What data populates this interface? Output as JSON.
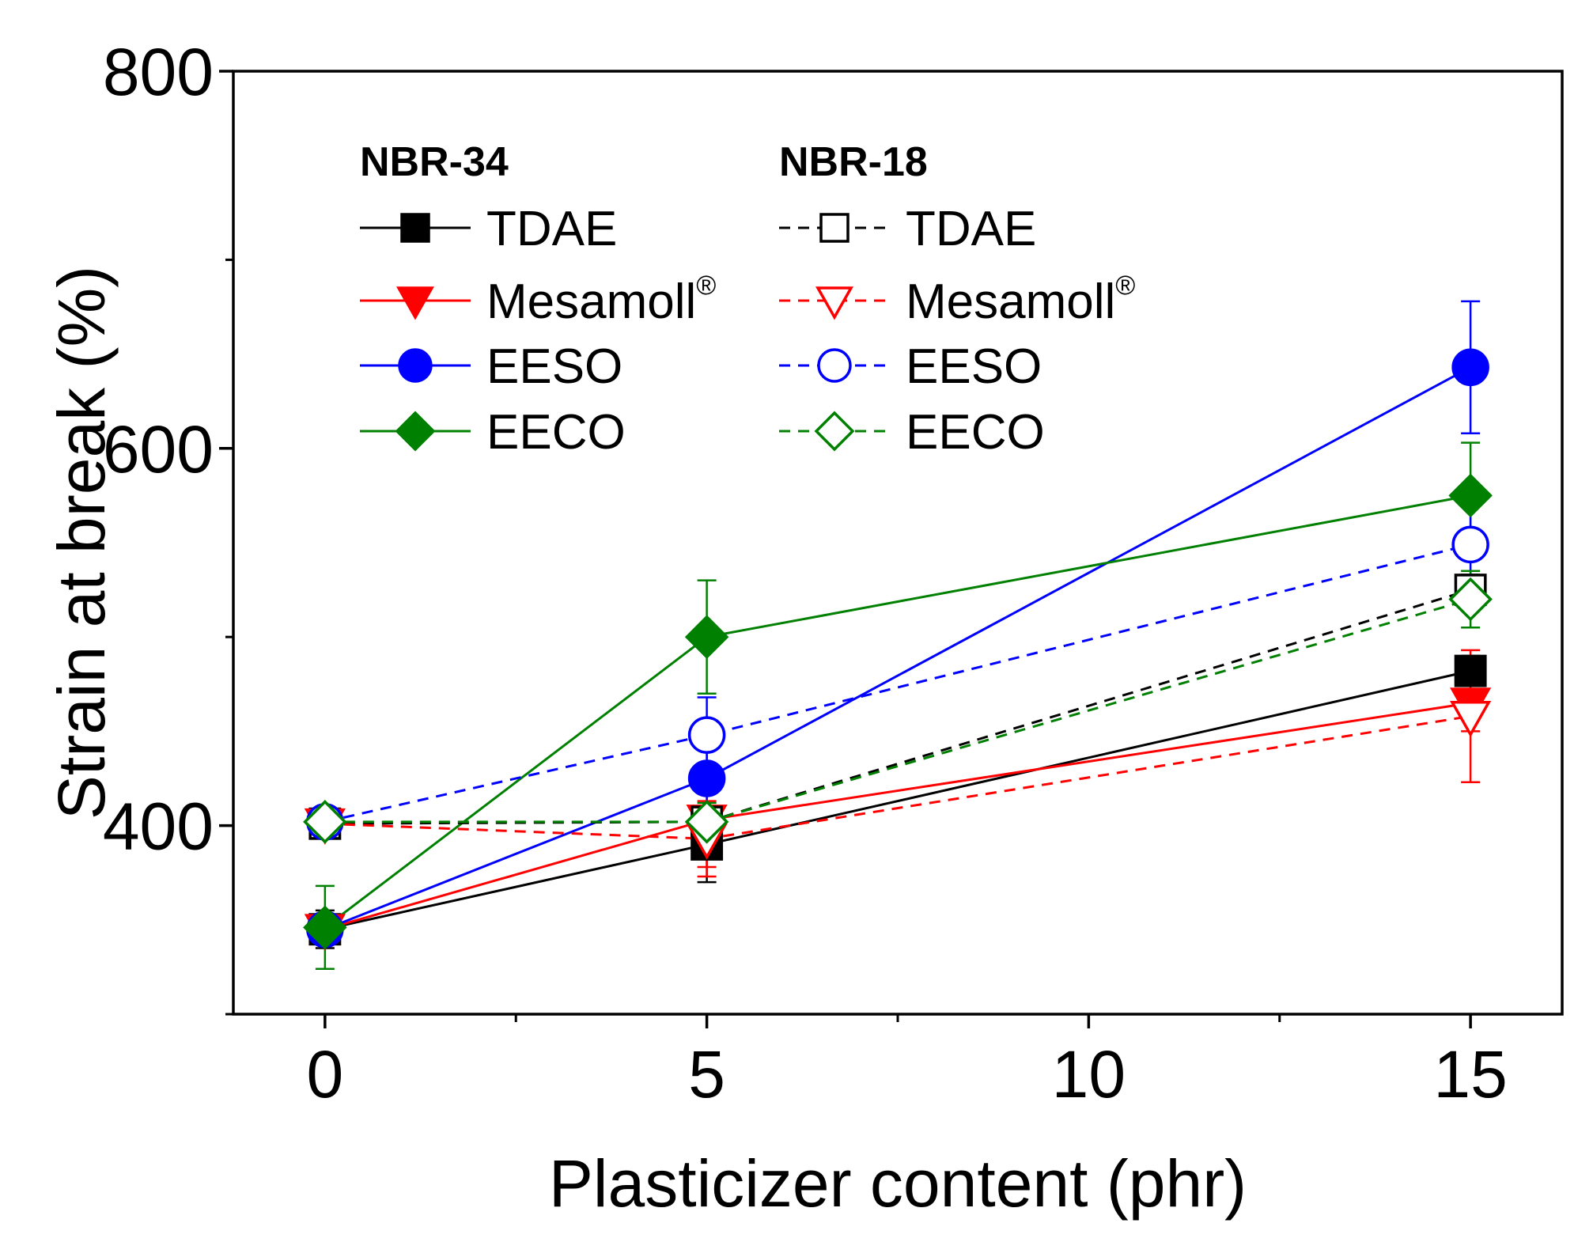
{
  "chart_data": {
    "type": "line",
    "xlabel": "Plasticizer content (phr)",
    "ylabel": "Strain at break (%)",
    "xlim": [
      -1.2,
      16.2
    ],
    "ylim": [
      300,
      800
    ],
    "xticks": [
      "0",
      "5",
      "10",
      "15"
    ],
    "yticks": [
      "400",
      "600",
      "800"
    ],
    "legend_groups": [
      "NBR-34",
      "NBR-18"
    ],
    "registered_mark": "®",
    "x": [
      0,
      5,
      15
    ],
    "series": [
      {
        "name": "TDAE",
        "group": "NBR-34",
        "color": "#000000",
        "marker": "square",
        "filled": true,
        "dashed": false,
        "values": [
          345,
          390,
          482
        ],
        "errors": [
          10,
          20,
          8
        ]
      },
      {
        "name": "Mesamoll",
        "group": "NBR-34",
        "color": "#ff0000",
        "marker": "triangle-down",
        "filled": true,
        "dashed": false,
        "values": [
          345,
          403,
          465
        ],
        "errors": [
          8,
          25,
          15
        ]
      },
      {
        "name": "EESO",
        "group": "NBR-34",
        "color": "#0000ff",
        "marker": "circle",
        "filled": true,
        "dashed": false,
        "values": [
          345,
          425,
          643
        ],
        "errors": [
          8,
          20,
          35
        ]
      },
      {
        "name": "EECO",
        "group": "NBR-34",
        "color": "#008000",
        "marker": "diamond",
        "filled": true,
        "dashed": false,
        "values": [
          346,
          500,
          575
        ],
        "errors": [
          22,
          30,
          28
        ]
      },
      {
        "name": "TDAE",
        "group": "NBR-18",
        "color": "#000000",
        "marker": "square",
        "filled": false,
        "dashed": true,
        "values": [
          401,
          402,
          525
        ],
        "errors": [
          3,
          5,
          8
        ]
      },
      {
        "name": "Mesamoll",
        "group": "NBR-18",
        "color": "#ff0000",
        "marker": "triangle-down",
        "filled": false,
        "dashed": true,
        "values": [
          401,
          393,
          458
        ],
        "errors": [
          5,
          20,
          35
        ]
      },
      {
        "name": "EESO",
        "group": "NBR-18",
        "color": "#0000ff",
        "marker": "circle",
        "filled": false,
        "dashed": true,
        "values": [
          402,
          448,
          549
        ],
        "errors": [
          3,
          20,
          20
        ]
      },
      {
        "name": "EECO",
        "group": "NBR-18",
        "color": "#008000",
        "marker": "diamond",
        "filled": false,
        "dashed": true,
        "values": [
          402,
          402,
          520
        ],
        "errors": [
          3,
          10,
          15
        ]
      }
    ]
  }
}
